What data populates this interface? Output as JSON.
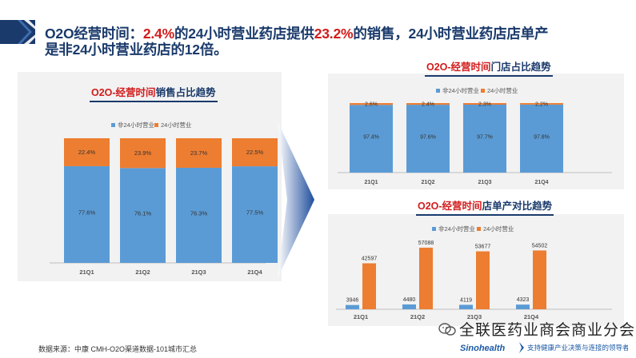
{
  "heading": {
    "p1": "O2O经营时间：",
    "h1": "2.4%",
    "p2": "的24小时营业药店提供",
    "h2": "23.2%",
    "p3": "的销售，24小时营业药店店单产",
    "p4": "是非24小时营业药店的12倍。"
  },
  "colors": {
    "blue": "#5b9bd5",
    "orange": "#ed7d31",
    "navy": "#1a3a6b",
    "red": "#d21b1b"
  },
  "chart_data": [
    {
      "id": "sales",
      "type": "bar",
      "stacked": true,
      "title_red": "O2O-经营时间",
      "title_rest": "销售占比趋势",
      "categories": [
        "21Q1",
        "21Q2",
        "21Q3",
        "21Q4"
      ],
      "series": [
        {
          "name": "非24小时营业",
          "values": [
            77.6,
            76.1,
            76.3,
            77.5
          ],
          "labels": [
            "77.6%",
            "76.1%",
            "76.3%",
            "77.5%"
          ]
        },
        {
          "name": "24小时营业",
          "values": [
            22.4,
            23.9,
            23.7,
            22.5
          ],
          "labels": [
            "22.4%",
            "23.9%",
            "23.7%",
            "22.5%"
          ]
        }
      ],
      "ylim": [
        0,
        100
      ],
      "legend": "top-center"
    },
    {
      "id": "stores",
      "type": "bar",
      "stacked": true,
      "title_red": "O2O-经营时间",
      "title_rest": "门店占比趋势",
      "categories": [
        "21Q1",
        "21Q2",
        "21Q3",
        "21Q4"
      ],
      "series": [
        {
          "name": "非24小时营业",
          "values": [
            97.4,
            97.6,
            97.7,
            97.8
          ],
          "labels": [
            "97.4%",
            "97.6%",
            "97.7%",
            "97.8%"
          ]
        },
        {
          "name": "24小时营业",
          "values": [
            2.6,
            2.4,
            2.3,
            2.2
          ],
          "labels": [
            "2.6%",
            "2.4%",
            "2.3%",
            "2.2%"
          ]
        }
      ],
      "ylim": [
        0,
        100
      ],
      "legend": "top-center"
    },
    {
      "id": "per_store",
      "type": "bar",
      "stacked": false,
      "title_red": "O2O-经营时间",
      "title_rest": "店单产对比趋势",
      "categories": [
        "21Q1",
        "21Q2",
        "21Q3",
        "21Q4"
      ],
      "series": [
        {
          "name": "非24小时营业",
          "values": [
            3946,
            4480,
            4119,
            4323
          ],
          "labels": [
            "3946",
            "4480",
            "4119",
            "4323"
          ]
        },
        {
          "name": "24小时营业",
          "values": [
            42597,
            57088,
            53677,
            54502
          ],
          "labels": [
            "42597",
            "57088",
            "53677",
            "54502"
          ]
        }
      ],
      "ylim": [
        0,
        60000
      ],
      "legend": "top-center"
    }
  ],
  "footer": {
    "source": "数据来源：中康 CMH-O2O渠道数据-101城市汇总",
    "wechat": "全联医药业商会商业分会",
    "logo_name": "Sinohealth",
    "logo_tagline": "支持健康产业决策与连接的领导者"
  }
}
